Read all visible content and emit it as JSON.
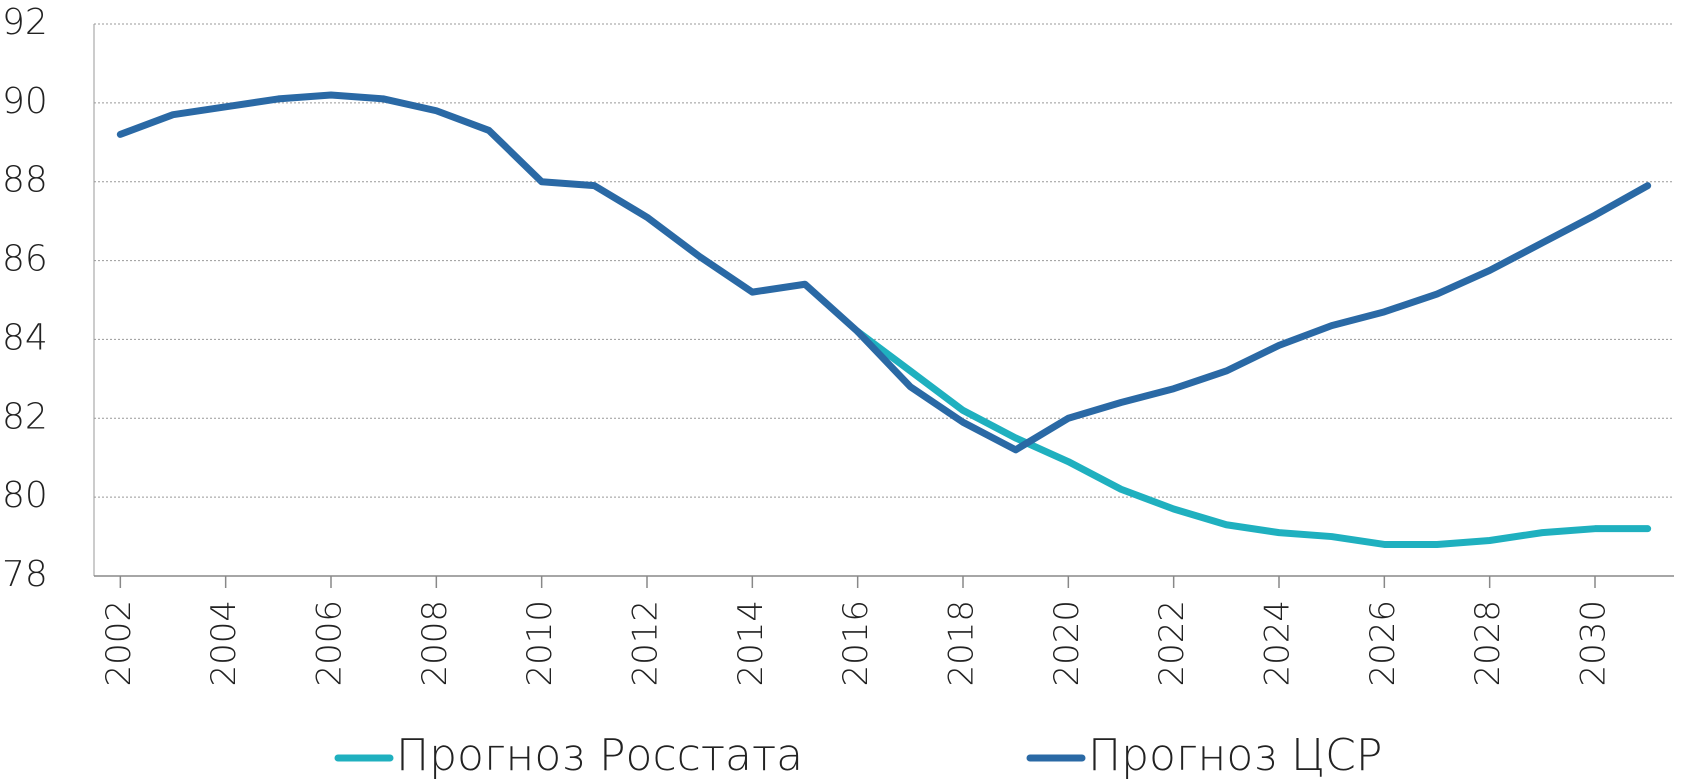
{
  "chart_data": {
    "type": "line",
    "x": [
      2002,
      2003,
      2004,
      2005,
      2006,
      2007,
      2008,
      2009,
      2010,
      2011,
      2012,
      2013,
      2014,
      2015,
      2016,
      2017,
      2018,
      2019,
      2020,
      2021,
      2022,
      2023,
      2024,
      2025,
      2026,
      2027,
      2028,
      2029,
      2030,
      2031
    ],
    "series": [
      {
        "name": "Прогноз Росстата",
        "color": "#1fb0bf",
        "values": [
          null,
          null,
          null,
          null,
          null,
          null,
          null,
          null,
          null,
          null,
          null,
          null,
          null,
          null,
          84.2,
          83.2,
          82.2,
          81.5,
          80.9,
          80.2,
          79.7,
          79.3,
          79.1,
          79.0,
          78.8,
          78.8,
          78.9,
          79.1,
          79.2,
          79.2
        ]
      },
      {
        "name": "Прогноз ЦСР",
        "color": "#2a69a5",
        "values": [
          89.2,
          89.7,
          89.9,
          90.1,
          90.2,
          90.1,
          89.8,
          89.3,
          88.0,
          87.9,
          87.1,
          86.1,
          85.2,
          85.4,
          84.2,
          82.8,
          81.9,
          81.2,
          82.0,
          82.4,
          82.75,
          83.2,
          83.85,
          84.35,
          84.7,
          85.15,
          85.75,
          86.45,
          87.15,
          87.9
        ]
      }
    ],
    "xlim": [
      2001.5,
      2031.5
    ],
    "xticks": [
      2002,
      2004,
      2006,
      2008,
      2010,
      2012,
      2014,
      2016,
      2018,
      2020,
      2022,
      2024,
      2026,
      2028,
      2030
    ],
    "ylim": [
      78,
      92
    ],
    "yticks": [
      78,
      80,
      82,
      84,
      86,
      88,
      90,
      92
    ],
    "grid": true,
    "legend": "bottom"
  }
}
